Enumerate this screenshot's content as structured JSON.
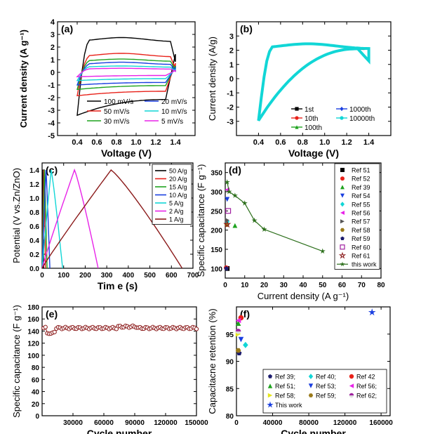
{
  "panels": [
    {
      "id": "a",
      "letter": "(a)",
      "type": "line",
      "xlabel": "Voltage (V)",
      "ylabel": "Current density (A g⁻¹)",
      "xlim": [
        0.2,
        1.6
      ],
      "ylim": [
        -5,
        4
      ],
      "xticks": [
        "0.4",
        "0.6",
        "0.8",
        "1.0",
        "1.2",
        "1.4"
      ],
      "xtick_values": [
        0.4,
        0.6,
        0.8,
        1.0,
        1.2,
        1.4
      ],
      "yticks": [
        "-5",
        "-4",
        "-3",
        "-2",
        "-1",
        "0",
        "1",
        "2",
        "3",
        "4"
      ],
      "ytick_values": [
        -5,
        -4,
        -3,
        -2,
        -1,
        0,
        1,
        2,
        3,
        4
      ],
      "legend_position": "lower-right",
      "legend_cols": 2,
      "series": [
        {
          "name": "100 mV/s",
          "color": "#000000",
          "upper_plateau": 2.4,
          "upper_peak": 2.75,
          "lower_plateau": -2.15,
          "lower_end": -3.4
        },
        {
          "name": "50 mV/s",
          "color": "#e8221a",
          "upper_plateau": 1.2,
          "upper_peak": 1.5,
          "lower_plateau": -1.5,
          "lower_end": -1.85
        },
        {
          "name": "30 mV/s",
          "color": "#1fa31f",
          "upper_plateau": 0.85,
          "upper_peak": 1.05,
          "lower_plateau": -1.05,
          "lower_end": -1.35
        },
        {
          "name": "20 mV/s",
          "color": "#1a3fe0",
          "upper_plateau": 0.6,
          "upper_peak": 0.8,
          "lower_plateau": -0.8,
          "lower_end": -1.0
        },
        {
          "name": "10 mV/s",
          "color": "#11d6d6",
          "upper_plateau": 0.4,
          "upper_peak": 0.5,
          "lower_plateau": -0.5,
          "lower_end": -0.65
        },
        {
          "name": "5 mV/s",
          "color": "#e823e8",
          "upper_plateau": 0.25,
          "upper_peak": 0.32,
          "lower_plateau": -0.25,
          "lower_end": -0.35
        }
      ]
    },
    {
      "id": "b",
      "letter": "(b)",
      "type": "line",
      "xlabel": "Voltage (V)",
      "ylabel": "Current density (A/g)",
      "xlim": [
        0.2,
        1.6
      ],
      "ylim": [
        -4,
        4
      ],
      "xticks": [
        "0.4",
        "0.6",
        "0.8",
        "1.0",
        "1.2",
        "1.4"
      ],
      "xtick_values": [
        0.4,
        0.6,
        0.8,
        1.0,
        1.2,
        1.4
      ],
      "yticks": [
        "-3",
        "-2",
        "-1",
        "0",
        "1",
        "2",
        "3"
      ],
      "ytick_values": [
        -3,
        -2,
        -1,
        0,
        1,
        2,
        3
      ],
      "legend_position": "lower-right",
      "legend_cols": 2,
      "series": [
        {
          "name": "1st",
          "color": "#000000",
          "marker": "square"
        },
        {
          "name": "10th",
          "color": "#e8221a",
          "marker": "circle"
        },
        {
          "name": "100th",
          "color": "#1fa31f",
          "marker": "triangle"
        },
        {
          "name": "1000th",
          "color": "#1a3fe0",
          "marker": "diamond"
        },
        {
          "name": "10000th",
          "color": "#11d6d6",
          "marker": "circle"
        }
      ]
    },
    {
      "id": "c",
      "letter": "(c)",
      "type": "line",
      "xlabel": "Tim e (s)",
      "ylabel": "Potential (V vs.Zn/ZnO)",
      "xlim": [
        0,
        700
      ],
      "ylim": [
        0,
        1.5
      ],
      "xticks": [
        "0",
        "100",
        "200",
        "300",
        "400",
        "500",
        "600",
        "700"
      ],
      "xtick_values": [
        0,
        100,
        200,
        300,
        400,
        500,
        600,
        700
      ],
      "yticks": [
        "0.0",
        "0.2",
        "0.4",
        "0.6",
        "0.8",
        "1.0",
        "1.2",
        "1.4"
      ],
      "ytick_values": [
        0,
        0.2,
        0.4,
        0.6,
        0.8,
        1.0,
        1.2,
        1.4
      ],
      "legend_position": "top-right",
      "legend_cols": 1,
      "series": [
        {
          "name": "50 A/g",
          "color": "#000000",
          "charge_end": 3,
          "discharge_end": 7
        },
        {
          "name": "20 A/g",
          "color": "#e8221a",
          "charge_end": 8,
          "discharge_end": 16
        },
        {
          "name": "15 A/g",
          "color": "#1fa31f",
          "charge_end": 11,
          "discharge_end": 23
        },
        {
          "name": "10 A/g",
          "color": "#1a3fe0",
          "charge_end": 18,
          "discharge_end": 36
        },
        {
          "name": "5 A/g",
          "color": "#11d6d6",
          "charge_end": 42,
          "discharge_end": 95
        },
        {
          "name": "2 A/g",
          "color": "#e823e8",
          "charge_end": 150,
          "discharge_end": 260
        },
        {
          "name": "1 A/g",
          "color": "#8b1a1a",
          "charge_end": 320,
          "discharge_end": 650
        }
      ]
    },
    {
      "id": "d",
      "letter": "(d)",
      "type": "scatter",
      "xlabel": "Current density (A g⁻¹)",
      "ylabel": "Specific capacitance (F g⁻¹)",
      "xlim": [
        0,
        80
      ],
      "ylim": [
        75,
        375
      ],
      "xticks": [
        "0",
        "10",
        "20",
        "30",
        "40",
        "50",
        "60",
        "70",
        "80"
      ],
      "xtick_values": [
        0,
        10,
        20,
        30,
        40,
        50,
        60,
        70,
        80
      ],
      "yticks": [
        "100",
        "150",
        "200",
        "250",
        "300",
        "350"
      ],
      "ytick_values": [
        100,
        150,
        200,
        250,
        300,
        350
      ],
      "legend_position": "top-right",
      "legend_cols": 1,
      "series": [
        {
          "name": "Ref 51",
          "color": "#000000",
          "marker": "square",
          "points": [
            [
              1,
              100
            ]
          ]
        },
        {
          "name": "Ref 52",
          "color": "#e8221a",
          "marker": "circle",
          "points": [
            [
              0.5,
              102
            ]
          ]
        },
        {
          "name": "Ref 39",
          "color": "#1fa31f",
          "marker": "triangle",
          "points": [
            [
              5,
              212
            ]
          ]
        },
        {
          "name": "Ref 54",
          "color": "#1a3fe0",
          "marker": "triangle-down",
          "points": [
            [
              1,
              280
            ]
          ]
        },
        {
          "name": "Ref 55",
          "color": "#11d6d6",
          "marker": "diamond",
          "points": [
            [
              1,
              222
            ]
          ]
        },
        {
          "name": "Ref 56",
          "color": "#e823e8",
          "marker": "triangle-left",
          "points": [
            [
              1,
              305
            ]
          ]
        },
        {
          "name": "Ref 57",
          "color": "#555555",
          "marker": "triangle-right",
          "points": [
            [
              1,
              226
            ]
          ]
        },
        {
          "name": "Ref 58",
          "color": "#9a7a1a",
          "marker": "hexagon",
          "points": [
            [
              0.8,
              214
            ]
          ]
        },
        {
          "name": "Ref 59",
          "color": "#1c1c6e",
          "marker": "pentagon",
          "points": [
            [
              0.6,
              100
            ]
          ]
        },
        {
          "name": "Ref 60",
          "color": "#a020a0",
          "marker": "square-open",
          "points": [
            [
              1.5,
              250
            ]
          ]
        },
        {
          "name": "Ref 61",
          "color": "#8b1a1a",
          "marker": "star-open",
          "points": [
            [
              1,
              215
            ]
          ]
        },
        {
          "name": "this work",
          "color": "#2b6e1a",
          "marker": "star",
          "line": true,
          "points": [
            [
              1,
              325
            ],
            [
              2,
              300
            ],
            [
              5,
              290
            ],
            [
              10,
              270
            ],
            [
              15,
              225
            ],
            [
              20,
              202
            ],
            [
              50,
              145
            ]
          ]
        }
      ]
    },
    {
      "id": "e",
      "letter": "(e)",
      "type": "scatter",
      "xlabel": "Cycle number",
      "ylabel": "Specific capacitance (F g⁻¹)",
      "xlim": [
        0,
        150000
      ],
      "ylim": [
        0,
        180
      ],
      "xticks": [
        "30000",
        "60000",
        "90000",
        "120000",
        "150000"
      ],
      "xtick_values": [
        30000,
        60000,
        90000,
        120000,
        150000
      ],
      "yticks": [
        "0",
        "20",
        "40",
        "60",
        "80",
        "100",
        "120",
        "140",
        "160",
        "180"
      ],
      "ytick_values": [
        0,
        20,
        40,
        60,
        80,
        100,
        120,
        140,
        160,
        180
      ],
      "series": [
        {
          "name": "",
          "color": "#8b1a1a",
          "marker": "circle-open",
          "mean": 145,
          "dip_at": 8000,
          "dip_value": 137,
          "count": 85
        }
      ]
    },
    {
      "id": "f",
      "letter": "(f)",
      "type": "scatter",
      "xlabel": "Cycle number",
      "ylabel": "Capacitacne retention (%)",
      "xlim": [
        0,
        170000
      ],
      "ylim": [
        80,
        100
      ],
      "xticks": [
        "0",
        "40000",
        "80000",
        "120000",
        "160000"
      ],
      "xtick_values": [
        0,
        40000,
        80000,
        120000,
        160000
      ],
      "yticks": [
        "80",
        "85",
        "90",
        "95"
      ],
      "ytick_values": [
        80,
        85,
        90,
        95
      ],
      "legend_position": "bottom",
      "legend_cols": 3,
      "series": [
        {
          "name": "Ref 39;",
          "color": "#1c1c6e",
          "marker": "pentagon",
          "points": [
            [
              3000,
              91.5
            ]
          ]
        },
        {
          "name": "Ref 40;",
          "color": "#11d6d6",
          "marker": "diamond",
          "points": [
            [
              10000,
              93
            ]
          ]
        },
        {
          "name": "Ref 42",
          "color": "#e8221a",
          "marker": "circle",
          "points": [
            [
              5000,
              98
            ]
          ]
        },
        {
          "name": "Ref 51;",
          "color": "#1fa31f",
          "marker": "triangle",
          "points": [
            [
              2000,
              97
            ]
          ]
        },
        {
          "name": "Ref 53;",
          "color": "#1a3fe0",
          "marker": "triangle-down",
          "points": [
            [
              5000,
              94
            ]
          ]
        },
        {
          "name": "Ref 56;",
          "color": "#e823e8",
          "marker": "triangle-left",
          "points": [
            [
              2000,
              97.5
            ]
          ]
        },
        {
          "name": "Ref 58;",
          "color": "#e6e619",
          "marker": "triangle-right",
          "points": [
            [
              2000,
              95
            ]
          ]
        },
        {
          "name": "Ref 59;",
          "color": "#9a7a1a",
          "marker": "hexagon",
          "points": [
            [
              2000,
              92
            ]
          ]
        },
        {
          "name": "Ref 62;",
          "color": "#a020a0",
          "marker": "halfcircle",
          "points": [
            [
              2000,
              95.5
            ]
          ]
        },
        {
          "name": "This work",
          "color": "#1a3fe0",
          "marker": "star",
          "points": [
            [
              150000,
              99
            ]
          ]
        }
      ]
    }
  ],
  "chart_data": [
    {
      "type": "line",
      "panel": "(a)",
      "xlabel": "Voltage (V)",
      "ylabel": "Current density (A g-1)",
      "ylim": [
        -5,
        4
      ],
      "series": [
        {
          "name": "100 mV/s"
        },
        {
          "name": "50 mV/s"
        },
        {
          "name": "30 mV/s"
        },
        {
          "name": "20 mV/s"
        },
        {
          "name": "10 mV/s"
        },
        {
          "name": "5 mV/s"
        }
      ]
    },
    {
      "type": "line",
      "panel": "(b)",
      "xlabel": "Voltage (V)",
      "ylabel": "Current density (A/g)",
      "series": [
        {
          "name": "1st"
        },
        {
          "name": "10th"
        },
        {
          "name": "100th"
        },
        {
          "name": "1000th"
        },
        {
          "name": "10000th"
        }
      ]
    },
    {
      "type": "line",
      "panel": "(c)",
      "xlabel": "Tim e (s)",
      "ylabel": "Potential (V vs.Zn/ZnO)",
      "series": [
        {
          "name": "50 A/g"
        },
        {
          "name": "20 A/g"
        },
        {
          "name": "15 A/g"
        },
        {
          "name": "10 A/g"
        },
        {
          "name": "5 A/g"
        },
        {
          "name": "2 A/g"
        },
        {
          "name": "1 A/g"
        }
      ]
    },
    {
      "type": "scatter",
      "panel": "(d)",
      "xlabel": "Current density (A g-1)",
      "ylabel": "Specific capacitance (F g-1)",
      "series": [
        {
          "name": "this work",
          "x": [
            1,
            2,
            5,
            10,
            15,
            20,
            50
          ],
          "y": [
            325,
            300,
            290,
            270,
            225,
            202,
            145
          ]
        }
      ]
    },
    {
      "type": "scatter",
      "panel": "(e)",
      "xlabel": "Cycle number",
      "ylabel": "Specific capacitance (F g-1)",
      "series": [
        {
          "name": "",
          "x": [
            0,
            8000,
            30000,
            60000,
            90000,
            120000,
            150000
          ],
          "y": [
            145,
            137,
            145,
            146,
            148,
            145,
            145
          ]
        }
      ]
    },
    {
      "type": "scatter",
      "panel": "(f)",
      "xlabel": "Cycle number",
      "ylabel": "Capacitacne retention (%)",
      "series": [
        {
          "name": "This work",
          "x": [
            150000
          ],
          "y": [
            99
          ]
        }
      ]
    }
  ]
}
